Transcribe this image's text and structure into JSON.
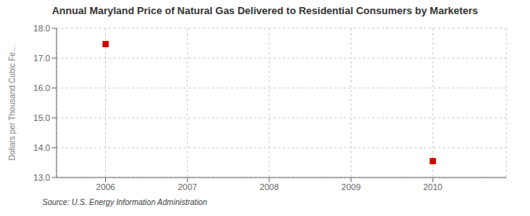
{
  "chart_data": {
    "type": "scatter",
    "title": "Annual Maryland Price of Natural Gas Delivered to Residential Consumers by Marketers",
    "ylabel": "Dollars per Thousand Cubic Fe...",
    "annotations": [
      "Source: U.S. Energy Information Administration"
    ],
    "x": [
      2006,
      2010
    ],
    "values": [
      17.47,
      13.55
    ],
    "color": "#cc0000",
    "marker": "square",
    "xlim": [
      2005.4,
      2010.9
    ],
    "ylim": [
      13.0,
      18.0
    ],
    "xticks": [
      2006,
      2007,
      2008,
      2009,
      2010
    ],
    "yticks": [
      {
        "value": 13,
        "label": "13.0"
      },
      {
        "value": 14,
        "label": "14.0"
      },
      {
        "value": 15,
        "label": "15.0"
      },
      {
        "value": 16,
        "label": "16.0"
      },
      {
        "value": 17,
        "label": "17.0"
      },
      {
        "value": 18,
        "label": "18.0"
      }
    ],
    "grid": true
  }
}
